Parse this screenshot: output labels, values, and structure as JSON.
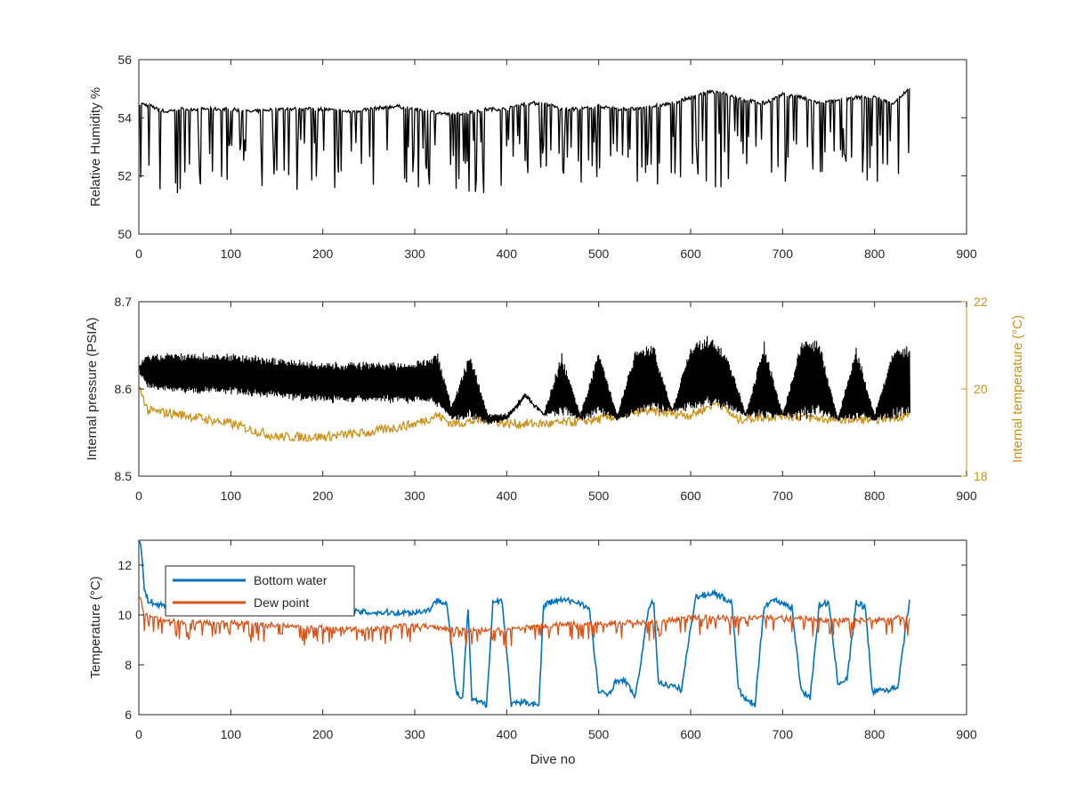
{
  "colors": {
    "black": "#000000",
    "orange_axis": "#c8921c",
    "blue": "#0072bd",
    "red_orange": "#d95319",
    "axis": "#262626"
  },
  "panels": {
    "humidity": {
      "ylabel": "Relative Humidity %",
      "xticks": [
        "0",
        "100",
        "200",
        "300",
        "400",
        "500",
        "600",
        "700",
        "800",
        "900"
      ],
      "yticks": [
        "50",
        "52",
        "54",
        "56"
      ]
    },
    "pressure": {
      "ylabel_left": "Internal pressure (PSIA)",
      "ylabel_right": "Internal temperature (°C)",
      "xticks": [
        "0",
        "100",
        "200",
        "300",
        "400",
        "500",
        "600",
        "700",
        "800",
        "900"
      ],
      "yticks_left": [
        "8.5",
        "8.6",
        "8.7"
      ],
      "yticks_right": [
        "18",
        "20",
        "22"
      ]
    },
    "temperature": {
      "ylabel": "Temperature (°C)",
      "xlabel": "Dive no",
      "xticks": [
        "0",
        "100",
        "200",
        "300",
        "400",
        "500",
        "600",
        "700",
        "800",
        "900"
      ],
      "yticks": [
        "6",
        "8",
        "10",
        "12"
      ],
      "legend": [
        "Bottom water",
        "Dew point"
      ]
    }
  },
  "chart_data": [
    {
      "type": "line",
      "ylabel": "Relative Humidity %",
      "xlim": [
        0,
        900
      ],
      "ylim": [
        50,
        56
      ],
      "grid": false,
      "series": [
        {
          "color": "#000000",
          "x": [
            1,
            13,
            20,
            30,
            40,
            50,
            60,
            80,
            100,
            120,
            150,
            180,
            200,
            230,
            250,
            280,
            300,
            320,
            340,
            360,
            380,
            400,
            420,
            440,
            460,
            480,
            500,
            520,
            540,
            560,
            580,
            600,
            620,
            640,
            660,
            680,
            700,
            720,
            740,
            760,
            780,
            800,
            820,
            838
          ],
          "baseline_y": [
            54.5,
            54.4,
            54.3,
            54.2,
            54.3,
            54.3,
            54.3,
            54.3,
            54.3,
            54.2,
            54.3,
            54.3,
            54.3,
            54.2,
            54.3,
            54.4,
            54.3,
            54.2,
            54.1,
            54.2,
            54.3,
            54.3,
            54.5,
            54.5,
            54.3,
            54.3,
            54.4,
            54.3,
            54.3,
            54.4,
            54.5,
            54.7,
            54.9,
            54.8,
            54.6,
            54.5,
            54.8,
            54.7,
            54.5,
            54.6,
            54.7,
            54.7,
            54.5,
            55.0
          ],
          "dip_min_y": [
            51.4,
            51.4,
            51.4,
            51.3,
            51.4,
            51.4,
            51.5,
            51.5,
            51.4,
            51.5,
            51.5,
            51.4,
            51.2,
            51.4,
            51.3,
            51.5,
            51.4,
            51.4,
            51.5,
            51.4,
            51.2,
            51.2,
            51.9,
            52.2,
            51.6,
            51.7,
            51.8,
            51.9,
            51.5,
            51.6,
            51.8,
            52.0,
            51.6,
            51.5,
            51.6,
            51.8,
            51.7,
            51.6,
            51.8,
            52.0,
            51.9,
            51.7,
            51.6,
            52.1
          ]
        }
      ]
    },
    {
      "type": "line",
      "xlim": [
        0,
        900
      ],
      "ylim": [
        8.5,
        8.7
      ],
      "ylim_right": [
        18,
        22
      ],
      "ylabel": "Internal pressure (PSIA)",
      "ylabel_right": "Internal temperature (°C)",
      "grid": false,
      "series": [
        {
          "axis": "left",
          "color": "#000000",
          "x": [
            1,
            10,
            50,
            100,
            150,
            200,
            250,
            300,
            325,
            340,
            360,
            380,
            400,
            420,
            440,
            460,
            480,
            500,
            520,
            540,
            560,
            580,
            600,
            620,
            640,
            660,
            680,
            700,
            720,
            740,
            760,
            780,
            800,
            820,
            838
          ],
          "baseline_y": [
            8.615,
            8.6,
            8.595,
            8.595,
            8.59,
            8.585,
            8.585,
            8.585,
            8.58,
            8.565,
            8.565,
            8.56,
            8.565,
            8.59,
            8.57,
            8.57,
            8.565,
            8.57,
            8.565,
            8.57,
            8.575,
            8.575,
            8.575,
            8.58,
            8.575,
            8.57,
            8.565,
            8.57,
            8.565,
            8.57,
            8.565,
            8.565,
            8.565,
            8.565,
            8.57
          ],
          "envelope_max_y": [
            8.63,
            8.64,
            8.64,
            8.64,
            8.635,
            8.63,
            8.63,
            8.63,
            8.64,
            8.58,
            8.64,
            8.57,
            8.57,
            8.595,
            8.57,
            8.64,
            8.57,
            8.645,
            8.57,
            8.645,
            8.65,
            8.575,
            8.65,
            8.66,
            8.64,
            8.57,
            8.655,
            8.57,
            8.655,
            8.655,
            8.565,
            8.65,
            8.57,
            8.645,
            8.65
          ]
        },
        {
          "axis": "right",
          "color": "#c8921c",
          "x": [
            1,
            10,
            50,
            100,
            150,
            200,
            250,
            300,
            325,
            340,
            380,
            400,
            450,
            500,
            550,
            600,
            630,
            650,
            700,
            750,
            800,
            838
          ],
          "y": [
            20.0,
            19.5,
            19.4,
            19.2,
            18.9,
            18.9,
            19.0,
            19.2,
            19.4,
            19.2,
            19.3,
            19.2,
            19.2,
            19.3,
            19.5,
            19.4,
            19.7,
            19.3,
            19.4,
            19.3,
            19.3,
            19.4
          ]
        }
      ]
    },
    {
      "type": "line",
      "xlabel": "Dive no",
      "ylabel": "Temperature (°C)",
      "xlim": [
        0,
        900
      ],
      "ylim": [
        6,
        13
      ],
      "grid": false,
      "legend_position": "top-left",
      "series": [
        {
          "name": "Bottom water",
          "color": "#0072bd",
          "x": [
            1,
            3,
            6,
            10,
            20,
            50,
            100,
            150,
            200,
            250,
            300,
            315,
            325,
            335,
            345,
            352,
            358,
            362,
            370,
            378,
            385,
            395,
            405,
            420,
            435,
            440,
            445,
            460,
            480,
            490,
            500,
            510,
            520,
            530,
            540,
            555,
            560,
            565,
            575,
            590,
            605,
            615,
            625,
            635,
            645,
            652,
            660,
            670,
            680,
            690,
            700,
            710,
            720,
            730,
            740,
            750,
            760,
            770,
            780,
            790,
            798,
            802,
            815,
            825,
            838
          ],
          "y": [
            13.0,
            12.5,
            11.0,
            10.6,
            10.4,
            10.4,
            10.3,
            10.2,
            10.2,
            10.1,
            10.1,
            10.2,
            10.6,
            10.5,
            6.9,
            6.6,
            10.3,
            6.6,
            6.5,
            6.4,
            10.5,
            10.6,
            6.4,
            6.5,
            6.4,
            10.3,
            10.5,
            10.6,
            10.5,
            10.2,
            6.9,
            6.8,
            7.4,
            7.3,
            6.7,
            10.4,
            10.5,
            7.3,
            7.2,
            7.0,
            10.7,
            10.8,
            10.9,
            10.7,
            10.5,
            7.0,
            6.6,
            6.4,
            10.4,
            10.6,
            10.5,
            10.3,
            7.0,
            6.7,
            10.4,
            10.5,
            7.3,
            7.4,
            10.5,
            10.3,
            6.8,
            7.0,
            7.0,
            7.1,
            10.6
          ]
        },
        {
          "name": "Dew point",
          "color": "#d95319",
          "x": [
            1,
            5,
            10,
            50,
            100,
            150,
            200,
            250,
            300,
            350,
            400,
            450,
            500,
            550,
            600,
            650,
            700,
            750,
            800,
            838
          ],
          "y": [
            10.8,
            10.1,
            9.9,
            9.7,
            9.7,
            9.6,
            9.5,
            9.4,
            9.6,
            9.4,
            9.4,
            9.6,
            9.7,
            9.7,
            9.9,
            9.9,
            9.9,
            9.8,
            9.8,
            9.9
          ]
        }
      ]
    }
  ]
}
